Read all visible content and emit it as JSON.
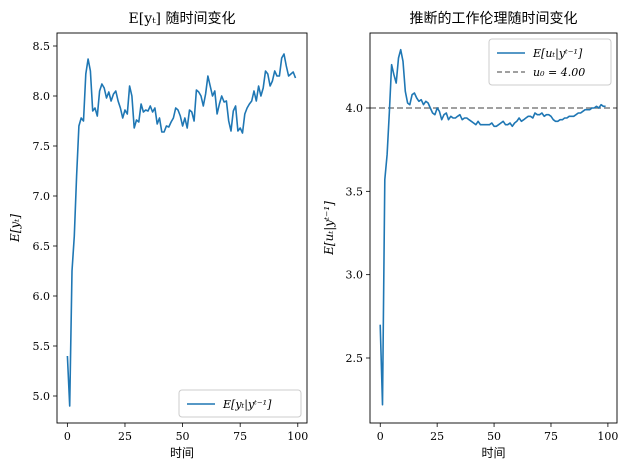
{
  "chart_data": [
    {
      "type": "line",
      "title": "E[yₜ] 随时间变化",
      "xlabel": "时间",
      "ylabel": "E[yₜ]",
      "xlim": [
        -4.5,
        104
      ],
      "ylim": [
        4.73,
        8.63
      ],
      "xticks": [
        0,
        25,
        50,
        75,
        100
      ],
      "yticks": [
        5.0,
        5.5,
        6.0,
        6.5,
        7.0,
        7.5,
        8.0,
        8.5
      ],
      "ytick_labels": [
        "5.0",
        "5.5",
        "6.0",
        "6.5",
        "7.0",
        "7.5",
        "8.0",
        "8.5"
      ],
      "legend_position": "lower-right",
      "grid": false,
      "series": [
        {
          "name": "E[yₜ|yᵗ⁻¹]",
          "color": "#1f77b4",
          "x": [
            0,
            1,
            2,
            3,
            4,
            5,
            6,
            7,
            8,
            9,
            10,
            11,
            12,
            13,
            14,
            15,
            16,
            17,
            18,
            19,
            20,
            21,
            22,
            23,
            24,
            25,
            26,
            27,
            28,
            29,
            30,
            31,
            32,
            33,
            34,
            35,
            36,
            37,
            38,
            39,
            40,
            41,
            42,
            43,
            44,
            45,
            46,
            47,
            48,
            49,
            50,
            51,
            52,
            53,
            54,
            55,
            56,
            57,
            58,
            59,
            60,
            61,
            62,
            63,
            64,
            65,
            66,
            67,
            68,
            69,
            70,
            71,
            72,
            73,
            74,
            75,
            76,
            77,
            78,
            79,
            80,
            81,
            82,
            83,
            84,
            85,
            86,
            87,
            88,
            89,
            90,
            91,
            92,
            93,
            94,
            95,
            96,
            97,
            98,
            99
          ],
          "y": [
            5.4,
            4.9,
            6.25,
            6.6,
            7.2,
            7.7,
            7.78,
            7.75,
            8.22,
            8.37,
            8.25,
            7.85,
            7.88,
            7.8,
            8.05,
            8.12,
            8.08,
            7.98,
            8.04,
            7.95,
            8.02,
            8.05,
            7.95,
            7.88,
            7.78,
            7.86,
            7.82,
            8.1,
            8.0,
            7.68,
            7.76,
            7.74,
            7.92,
            7.84,
            7.86,
            7.85,
            7.9,
            7.84,
            7.88,
            7.72,
            7.78,
            7.64,
            7.64,
            7.7,
            7.69,
            7.74,
            7.78,
            7.88,
            7.86,
            7.8,
            7.7,
            7.78,
            7.68,
            7.86,
            7.84,
            7.75,
            8.06,
            8.04,
            8.0,
            7.9,
            8.02,
            8.2,
            8.1,
            8.0,
            8.05,
            7.82,
            7.92,
            8.0,
            7.94,
            7.95,
            7.75,
            7.65,
            7.85,
            7.9,
            7.65,
            7.68,
            7.63,
            7.82,
            7.88,
            7.92,
            7.95,
            8.05,
            7.95,
            8.1,
            8.0,
            8.08,
            8.25,
            8.22,
            8.1,
            8.15,
            8.25,
            8.2,
            8.2,
            8.38,
            8.42,
            8.3,
            8.2,
            8.22,
            8.24,
            8.18
          ]
        }
      ]
    },
    {
      "type": "line",
      "title": "推断的工作伦理随时间变化",
      "xlabel": "时间",
      "ylabel": "E[uₜ|yᵗ⁻¹]",
      "xlim": [
        -4.5,
        104
      ],
      "ylim": [
        2.11,
        4.45
      ],
      "xticks": [
        0,
        25,
        50,
        75,
        100
      ],
      "yticks": [
        2.5,
        3.0,
        3.5,
        4.0
      ],
      "ytick_labels": [
        "2.5",
        "3.0",
        "3.5",
        "4.0"
      ],
      "legend_position": "top-right",
      "grid": false,
      "reference_line": {
        "y": 4.0,
        "label": "u₀ = 4.00",
        "color": "#808080",
        "style": "dashed"
      },
      "series": [
        {
          "name": "E[uₜ|yᵗ⁻¹]",
          "color": "#1f77b4",
          "x": [
            0,
            1,
            2,
            3,
            4,
            5,
            6,
            7,
            8,
            9,
            10,
            11,
            12,
            13,
            14,
            15,
            16,
            17,
            18,
            19,
            20,
            21,
            22,
            23,
            24,
            25,
            26,
            27,
            28,
            29,
            30,
            31,
            32,
            33,
            34,
            35,
            36,
            37,
            38,
            39,
            40,
            41,
            42,
            43,
            44,
            45,
            46,
            47,
            48,
            49,
            50,
            51,
            52,
            53,
            54,
            55,
            56,
            57,
            58,
            59,
            60,
            61,
            62,
            63,
            64,
            65,
            66,
            67,
            68,
            69,
            70,
            71,
            72,
            73,
            74,
            75,
            76,
            77,
            78,
            79,
            80,
            81,
            82,
            83,
            84,
            85,
            86,
            87,
            88,
            89,
            90,
            91,
            92,
            93,
            94,
            95,
            96,
            97,
            98,
            99
          ],
          "y": [
            2.7,
            2.22,
            3.57,
            3.72,
            3.98,
            4.26,
            4.2,
            4.15,
            4.3,
            4.35,
            4.28,
            4.1,
            4.03,
            4.02,
            4.08,
            4.09,
            4.06,
            4.04,
            4.05,
            4.02,
            4.04,
            4.03,
            4.0,
            3.97,
            3.96,
            4.0,
            3.98,
            3.93,
            3.96,
            3.97,
            3.93,
            3.95,
            3.94,
            3.94,
            3.95,
            3.96,
            3.93,
            3.94,
            3.94,
            3.93,
            3.92,
            3.91,
            3.9,
            3.92,
            3.9,
            3.9,
            3.9,
            3.9,
            3.9,
            3.91,
            3.89,
            3.89,
            3.9,
            3.91,
            3.92,
            3.9,
            3.9,
            3.91,
            3.89,
            3.91,
            3.92,
            3.94,
            3.92,
            3.93,
            3.94,
            3.95,
            3.95,
            3.94,
            3.97,
            3.96,
            3.96,
            3.97,
            3.95,
            3.96,
            3.96,
            3.95,
            3.93,
            3.92,
            3.92,
            3.93,
            3.93,
            3.94,
            3.94,
            3.95,
            3.95,
            3.95,
            3.96,
            3.97,
            3.97,
            3.98,
            3.99,
            3.99,
            3.99,
            4.0,
            4.0,
            4.01,
            4.0,
            4.02,
            4.01,
            4.01
          ]
        }
      ]
    }
  ]
}
